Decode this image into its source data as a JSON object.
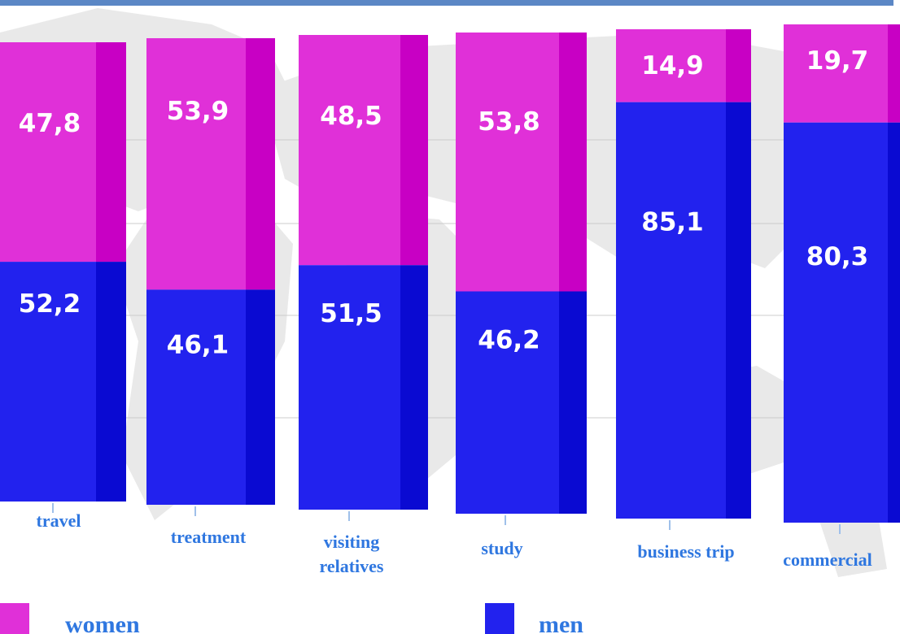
{
  "chart_data": {
    "type": "bar",
    "stacked": true,
    "categories": [
      "travel",
      "treatment",
      "visiting relatives",
      "study",
      "business trip",
      "commercial"
    ],
    "category_lines": [
      [
        "travel"
      ],
      [
        "treatment"
      ],
      [
        "visiting",
        "relatives"
      ],
      [
        "study"
      ],
      [
        "business trip"
      ],
      [
        "commercial"
      ]
    ],
    "series": [
      {
        "name": "men",
        "values": [
          52.2,
          46.1,
          51.5,
          46.2,
          85.1,
          80.3
        ],
        "labels": [
          "52,2",
          "46,1",
          "51,5",
          "46,2",
          "85,1",
          "80,3"
        ],
        "color": "#2222ee"
      },
      {
        "name": "women",
        "values": [
          47.8,
          53.9,
          48.5,
          53.8,
          14.9,
          19.7
        ],
        "labels": [
          "47,8",
          "53,9",
          "48,5",
          "53,8",
          "14,9",
          "19,7"
        ],
        "color": "#e030d8"
      }
    ],
    "ylim": [
      0,
      100
    ],
    "legend_position": "bottom",
    "grid": true
  },
  "colors": {
    "men_front": "#2222ee",
    "men_side": "#0a0ad2",
    "women_front": "#e030d8",
    "women_side": "#c800c4",
    "labels": "#2f77e0",
    "top_rule": "#5b87c5",
    "map_background": "#e9e9e9",
    "grid": "#cccccc"
  },
  "legend": {
    "women_label": "women",
    "men_label": "men"
  }
}
